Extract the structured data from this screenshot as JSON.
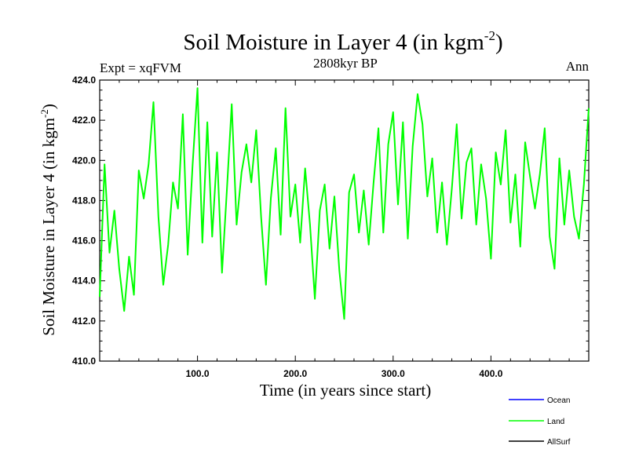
{
  "chart_data": {
    "type": "line",
    "title": "Soil Moisture in Layer 4 (in kgm",
    "title_superscript": "-2",
    "title_suffix": ")",
    "subtitle": "2808kyr BP",
    "left_label": "Expt = xqFVM",
    "right_label": "Ann",
    "xlabel": "Time (in years since start)",
    "ylabel": "Soil Moisture in Layer 4 (in kgm",
    "ylabel_superscript": "-2",
    "ylabel_suffix": ")",
    "xlim": [
      0,
      500
    ],
    "ylim": [
      410,
      424
    ],
    "x_ticks": [
      100,
      200,
      300,
      400
    ],
    "x_tick_labels": [
      "100.0",
      "200.0",
      "300.0",
      "400.0"
    ],
    "y_ticks": [
      410,
      412,
      414,
      416,
      418,
      420,
      422,
      424
    ],
    "y_tick_labels": [
      "410.0",
      "412.0",
      "414.0",
      "416.0",
      "418.0",
      "420.0",
      "422.0",
      "424.0"
    ],
    "legend": [
      {
        "name": "Ocean",
        "color": "#0000ff"
      },
      {
        "name": "Land",
        "color": "#00ff00"
      },
      {
        "name": "AllSurf",
        "color": "#000000"
      }
    ],
    "series": [
      {
        "name": "Land",
        "color": "#00ff00",
        "x": [
          0,
          5,
          10,
          15,
          20,
          25,
          30,
          35,
          40,
          45,
          50,
          55,
          60,
          65,
          70,
          75,
          80,
          85,
          90,
          95,
          100,
          105,
          110,
          115,
          120,
          125,
          130,
          135,
          140,
          145,
          150,
          155,
          160,
          165,
          170,
          175,
          180,
          185,
          190,
          195,
          200,
          205,
          210,
          215,
          220,
          225,
          230,
          235,
          240,
          245,
          250,
          255,
          260,
          265,
          270,
          275,
          280,
          285,
          290,
          295,
          300,
          305,
          310,
          315,
          320,
          325,
          330,
          335,
          340,
          345,
          350,
          355,
          360,
          365,
          370,
          375,
          380,
          385,
          390,
          395,
          400,
          405,
          410,
          415,
          420,
          425,
          430,
          435,
          440,
          445,
          450,
          455,
          460,
          465,
          470,
          475,
          480,
          485,
          490,
          495,
          500
        ],
        "values": [
          413.2,
          419.8,
          415.4,
          417.5,
          414.6,
          412.5,
          415.2,
          413.3,
          419.5,
          418.1,
          419.8,
          422.9,
          417.2,
          413.8,
          415.8,
          418.9,
          417.6,
          422.3,
          415.3,
          419.8,
          423.6,
          415.9,
          421.9,
          416.2,
          420.4,
          414.4,
          418.5,
          422.8,
          416.8,
          419.4,
          420.8,
          418.9,
          421.5,
          417.2,
          413.8,
          418.1,
          420.6,
          416.3,
          422.6,
          417.2,
          418.8,
          415.9,
          419.6,
          416.8,
          413.1,
          417.5,
          418.8,
          415.6,
          418.2,
          414.5,
          412.1,
          418.4,
          419.3,
          416.4,
          418.5,
          415.8,
          418.9,
          421.6,
          416.4,
          420.8,
          422.4,
          417.8,
          421.9,
          416.1,
          420.7,
          423.3,
          421.8,
          418.2,
          420.1,
          416.4,
          418.9,
          415.8,
          418.6,
          421.8,
          417.1,
          419.9,
          420.6,
          416.8,
          419.8,
          418.1,
          415.1,
          420.4,
          418.8,
          421.5,
          416.9,
          419.3,
          415.7,
          420.9,
          419.2,
          417.6,
          419.3,
          421.6,
          416.2,
          414.6,
          420.1,
          416.8,
          419.5,
          417.2,
          416.1,
          418.8,
          422.6
        ]
      }
    ]
  }
}
